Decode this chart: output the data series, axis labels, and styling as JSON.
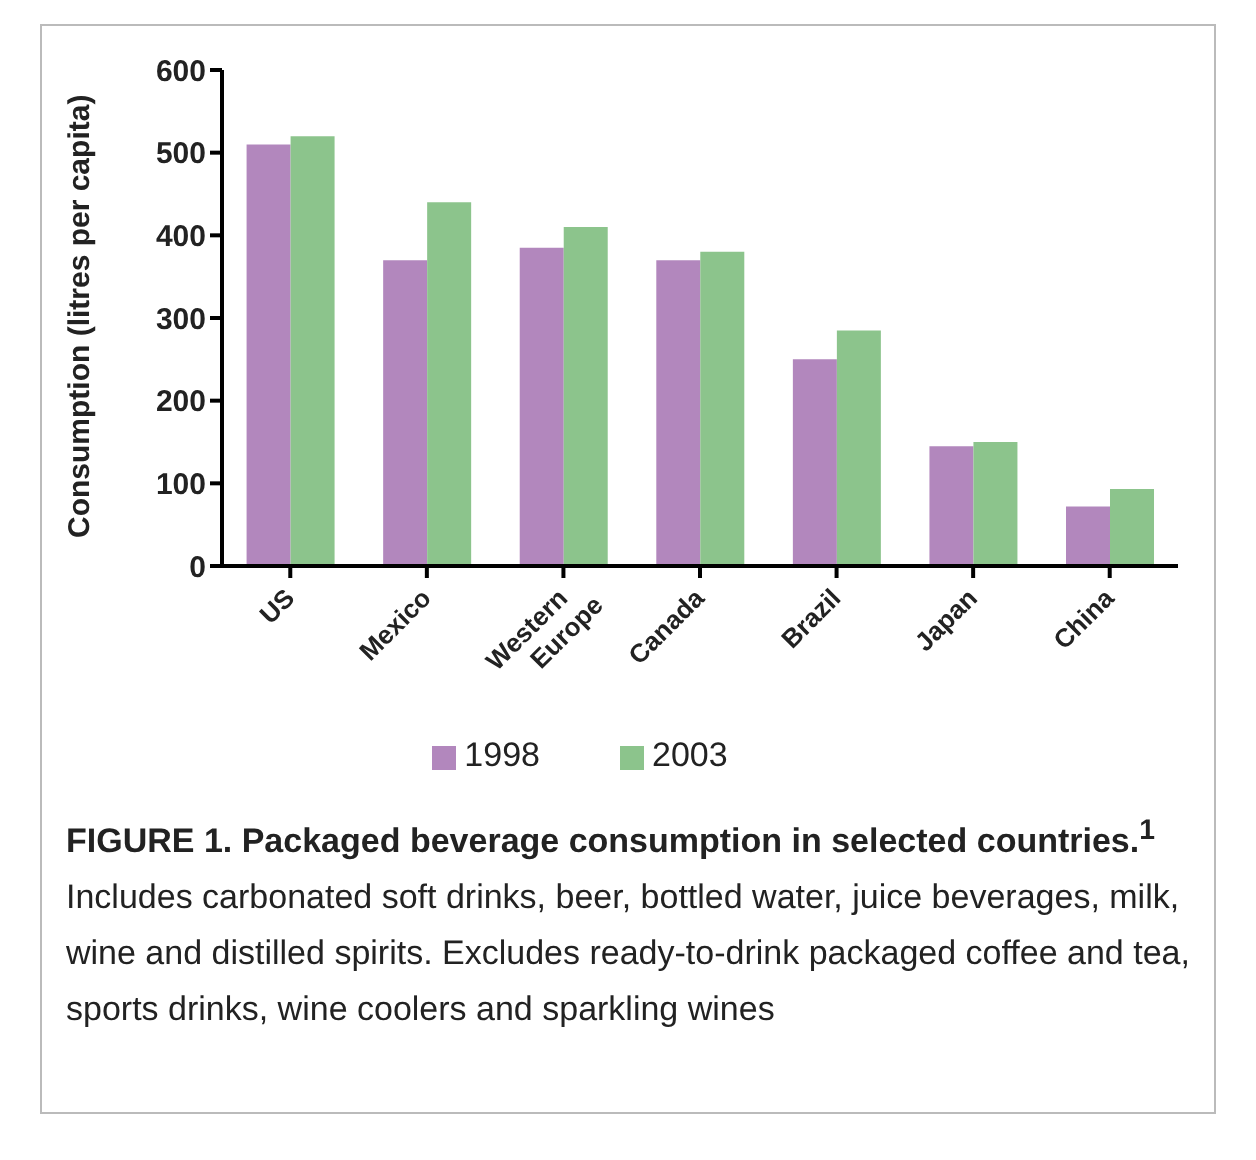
{
  "chart_data": {
    "type": "bar",
    "title": "FIGURE 1. Packaged beverage consumption in selected countries.$^{1}$",
    "ylabel": "Consumption (litres per capita)",
    "categories": [
      "US",
      "Mexico",
      "Western Europe",
      "Canada",
      "Brazil",
      "Japan",
      "China"
    ],
    "series": [
      {
        "name": "1998",
        "color": "#b287bd",
        "values": [
          510,
          370,
          385,
          370,
          250,
          145,
          72
        ]
      },
      {
        "name": "2003",
        "color": "#8cc48c",
        "values": [
          520,
          440,
          410,
          380,
          285,
          150,
          93
        ]
      }
    ],
    "ylim": [
      0,
      600
    ],
    "yticks": [
      0,
      100,
      200,
      300,
      400,
      500,
      600
    ],
    "grid": false,
    "legend": "bottom",
    "annotations": [
      "Includes carbonated soft drinks, beer, bottled water, juice beverages, milk, wine and distilled spirits. Excludes ready-to-drink packaged coffee and tea, sports drinks, wine coolers and sparkling wines"
    ]
  }
}
